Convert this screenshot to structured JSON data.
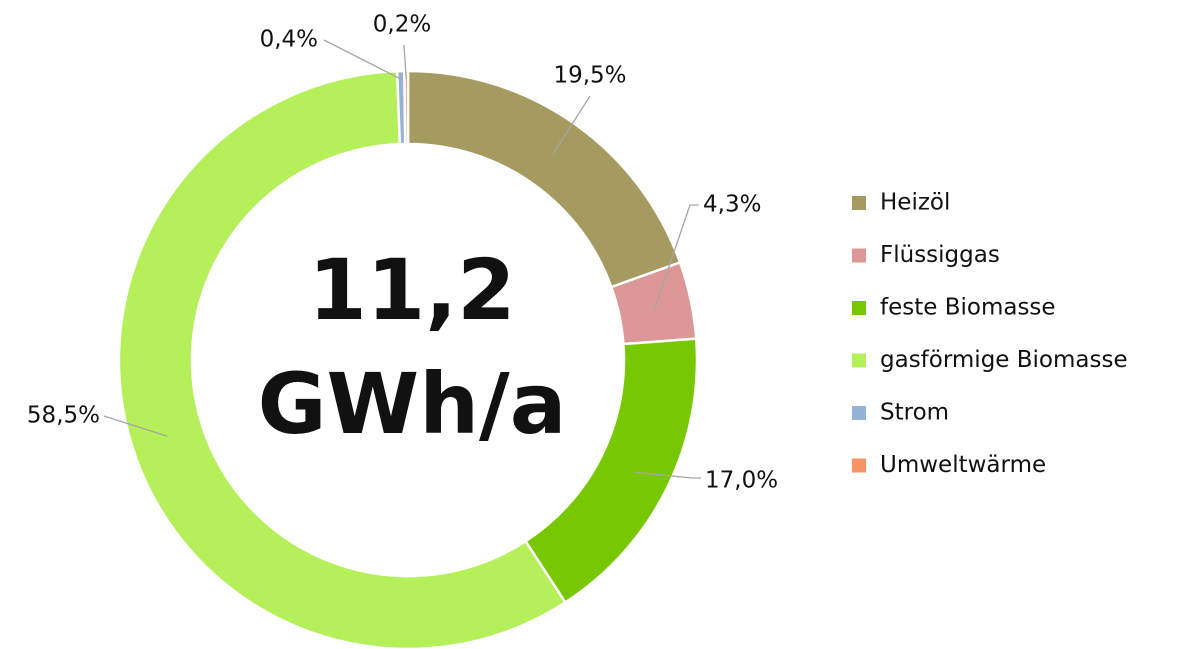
{
  "chart_data": {
    "type": "donut",
    "annotations": [
      "11,2",
      "GWh/a"
    ],
    "categories": [
      "Heizöl",
      "Flüssiggas",
      "feste Biomasse",
      "gasförmige Biomasse",
      "Strom",
      "Umweltwärme"
    ],
    "values": [
      19.5,
      4.3,
      17.0,
      58.5,
      0.4,
      0.2
    ],
    "value_labels": [
      "19,5%",
      "4,3%",
      "17,0%",
      "58,5%",
      "0,4%",
      "0,2%"
    ],
    "colors": [
      "#a59a5f",
      "#dc9797",
      "#77c800",
      "#b5ef5a",
      "#95b3d7",
      "#f79464"
    ],
    "legend": "right"
  }
}
